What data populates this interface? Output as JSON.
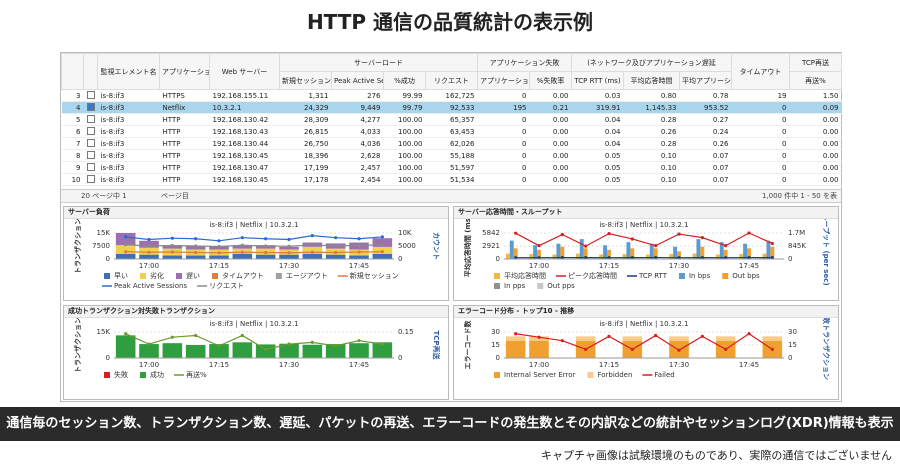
{
  "title": "HTTP 通信の品質統計の表示例",
  "table": {
    "headers": [
      "監視エレメント名",
      "アプリケーショ",
      "Web サーバー",
      "サーバーロード",
      "アプリケーション失敗",
      "(ネットワーク及びアプリケーション遅延",
      "タイムアウト",
      "TCP再送",
      "新規セッション",
      "Peak Active Se",
      "%成功",
      "リクエスト",
      "アプリケーショ",
      "%失敗率",
      "TCP RTT (ms)",
      "平均応答時間",
      "平均アプリーシ",
      "再送%"
    ],
    "selected_row": 1,
    "rows": [
      [
        "3",
        "is-8:if3",
        "HTTPS",
        "192.168.155.11",
        "1,311",
        "276",
        "99.99",
        "162,725",
        "0",
        "0.00",
        "0.03",
        "0.80",
        "0.78",
        "19",
        "1.50"
      ],
      [
        "4",
        "is-8:if3",
        "Netflix",
        "10.3.2.1",
        "24,329",
        "9,449",
        "99.79",
        "92,533",
        "195",
        "0.21",
        "319.91",
        "1,145.33",
        "953.52",
        "0",
        "0.09"
      ],
      [
        "5",
        "is-8:if3",
        "HTTP",
        "192.168.130.42",
        "28,309",
        "4,277",
        "100.00",
        "65,357",
        "0",
        "0.00",
        "0.04",
        "0.28",
        "0.27",
        "0",
        "0.00"
      ],
      [
        "6",
        "is-8:if3",
        "HTTP",
        "192.168.130.43",
        "26,815",
        "4,033",
        "100.00",
        "63,453",
        "0",
        "0.00",
        "0.04",
        "0.26",
        "0.24",
        "0",
        "0.00"
      ],
      [
        "7",
        "is-8:if3",
        "HTTP",
        "192.168.130.44",
        "26,750",
        "4,036",
        "100.00",
        "62,026",
        "0",
        "0.00",
        "0.04",
        "0.28",
        "0.26",
        "0",
        "0.00"
      ],
      [
        "8",
        "is-8:if3",
        "HTTP",
        "192.168.130.45",
        "18,396",
        "2,628",
        "100.00",
        "55,188",
        "0",
        "0.00",
        "0.05",
        "0.10",
        "0.07",
        "0",
        "0.00"
      ],
      [
        "9",
        "is-8:if3",
        "HTTP",
        "192.168.130.47",
        "17,199",
        "2,457",
        "100.00",
        "51,597",
        "0",
        "0.00",
        "0.05",
        "0.10",
        "0.07",
        "0",
        "0.00"
      ],
      [
        "10",
        "is-8:if3",
        "HTTP",
        "192.168.130.45",
        "17,178",
        "2,454",
        "100.00",
        "51,534",
        "0",
        "0.00",
        "0.05",
        "0.10",
        "0.07",
        "0",
        "0.00"
      ]
    ]
  },
  "pagination": {
    "pages": "20 ページ中 1",
    "page_label": "ページ目",
    "range": "1,000 件中 1 - 50 を表"
  },
  "panels": [
    {
      "title": "サーバー負荷",
      "subtitle": "is-8:if3 | Netflix | 10.3.2.1",
      "ylabel": "トランザクション",
      "y2label": "カウント",
      "stacked": true,
      "ylim": [
        0,
        15000
      ],
      "yticks": [
        0,
        7500,
        {
          "value": 15000,
          "label": "15K"
        }
      ],
      "y2lim": [
        0,
        10000
      ],
      "y2ticks": [
        0,
        5000,
        {
          "value": 10000,
          "label": "10K"
        }
      ],
      "xticks": [
        "17:00",
        "17:15",
        "17:30",
        "17:45"
      ],
      "series": [
        {
          "name": "早い",
          "kind": "bar",
          "color": "#3f6fb5",
          "values": [
            3000,
            2500,
            2000,
            2000,
            2000,
            3000,
            2500,
            2500,
            3000,
            2500,
            2000,
            3000
          ]
        },
        {
          "name": "劣化",
          "kind": "bar",
          "color": "#f0d050",
          "values": [
            5000,
            4000,
            4000,
            3500,
            3500,
            3000,
            3500,
            3000,
            4000,
            3500,
            3500,
            4000
          ]
        },
        {
          "name": "遅い",
          "kind": "bar",
          "color": "#9b6fb0",
          "values": [
            7000,
            4000,
            2000,
            2000,
            2000,
            1500,
            2000,
            1500,
            2500,
            3000,
            4000,
            5000
          ]
        },
        {
          "name": "タイムアウト",
          "kind": "bar",
          "color": "#e07b39",
          "values": [
            0,
            0,
            0,
            0,
            0,
            0,
            0,
            0,
            0,
            0,
            0,
            0
          ]
        },
        {
          "name": "エージアウト",
          "kind": "bar",
          "color": "#a0a0a0",
          "values": [
            0,
            0,
            0,
            0,
            0,
            0,
            0,
            0,
            0,
            0,
            0,
            0
          ]
        },
        {
          "name": "新規セッション",
          "kind": "line",
          "axis": "y2",
          "color": "#e07b39",
          "values": [
            2800,
            2600,
            2700,
            2500,
            2400,
            2600,
            2500,
            2400,
            2600,
            2500,
            2700,
            2800
          ]
        },
        {
          "name": "Peak Active Sessions",
          "kind": "line",
          "axis": "y2",
          "color": "#2a6ad0",
          "values": [
            8500,
            7500,
            8000,
            7800,
            7000,
            8200,
            7800,
            7500,
            9000,
            8200,
            7800,
            8500
          ]
        },
        {
          "name": "リクエスト",
          "kind": "line",
          "axis": "y2",
          "color": "#8a8a8a",
          "values": [
            5500,
            5000,
            5200,
            5000,
            4800,
            5300,
            5000,
            4900,
            5400,
            5100,
            5200,
            5500
          ]
        }
      ]
    },
    {
      "title": "サーバー応答時間・スループット",
      "subtitle": "is-8:if3 | Netflix | 10.3.2.1",
      "ylabel": "平均応答時間 (ms)",
      "y2label": "スループット (per sec)",
      "stacked": false,
      "ylim": [
        0,
        5842
      ],
      "yticks": [
        0,
        2921,
        5842
      ],
      "y2lim": [
        0,
        1700000
      ],
      "y2ticks": [
        0,
        {
          "value": 845000,
          "label": "845K"
        },
        {
          "value": 1700000,
          "label": "1.7M"
        }
      ],
      "xticks": [
        "17:00",
        "17:15",
        "17:30",
        "17:45"
      ],
      "series": [
        {
          "name": "平均応答時間",
          "kind": "bar",
          "color": "#f0b840",
          "values": [
            1200,
            1100,
            1000,
            1200,
            1000,
            1100,
            1000,
            1100,
            1200,
            1000,
            1100,
            1200
          ]
        },
        {
          "name": "ピーク応答時間",
          "kind": "line",
          "color": "#d81e1e",
          "values": [
            5800,
            3000,
            5500,
            2900,
            5700,
            4500,
            3000,
            5600,
            4800,
            3000,
            5842,
            3500
          ]
        },
        {
          "name": "TCP RTT",
          "kind": "line",
          "color": "#1f3a7a",
          "values": [
            300,
            300,
            320,
            310,
            300,
            310,
            320,
            300,
            310,
            300,
            320,
            310
          ]
        },
        {
          "name": "In bps",
          "kind": "bar",
          "axis": "y2",
          "color": "#5b9bd5",
          "values": [
            1200000,
            900000,
            1000000,
            1300000,
            900000,
            1100000,
            1000000,
            800000,
            1300000,
            1100000,
            1000000,
            1200000
          ]
        },
        {
          "name": "Out bps",
          "kind": "bar",
          "axis": "y2",
          "color": "#f0a030",
          "values": [
            700000,
            600000,
            800000,
            700000,
            600000,
            700000,
            700000,
            500000,
            800000,
            600000,
            700000,
            800000
          ]
        },
        {
          "name": "In pps",
          "kind": "bar",
          "axis": "y2",
          "color": "#909090",
          "values": [
            0,
            0,
            0,
            0,
            0,
            0,
            0,
            0,
            0,
            0,
            0,
            0
          ]
        },
        {
          "name": "Out pps",
          "kind": "bar",
          "axis": "y2",
          "color": "#c8c8c8",
          "values": [
            0,
            0,
            0,
            0,
            0,
            0,
            0,
            0,
            0,
            0,
            0,
            0
          ]
        }
      ]
    },
    {
      "title": "成功トランザクション対失敗トランザクション",
      "subtitle": "is-8:if3 | Netflix | 10.3.2.1",
      "ylabel": "トランザクション",
      "y2label": "TCP再送",
      "stacked": true,
      "ylim": [
        0,
        15000
      ],
      "yticks": [
        0,
        {
          "value": 15000,
          "label": "15K"
        }
      ],
      "y2lim": [
        0,
        0.15
      ],
      "y2ticks": [
        0,
        0.15
      ],
      "xticks": [
        "17:00",
        "17:15",
        "17:30",
        "17:45"
      ],
      "series": [
        {
          "name": "失敗",
          "kind": "bar",
          "color": "#d81e1e",
          "values": [
            60,
            40,
            50,
            40,
            40,
            50,
            40,
            40,
            50,
            40,
            40,
            50
          ]
        },
        {
          "name": "成功",
          "kind": "bar",
          "color": "#2e9e3e",
          "values": [
            13000,
            8000,
            8500,
            7500,
            8000,
            9000,
            7800,
            8200,
            7600,
            8000,
            8500,
            9000
          ]
        },
        {
          "name": "再送%",
          "kind": "line",
          "axis": "y2",
          "color": "#6b9a2e",
          "values": [
            0.14,
            0.08,
            0.12,
            0.13,
            0.07,
            0.13,
            0.05,
            0.08,
            0.09,
            0.07,
            0.1,
            0.08
          ]
        }
      ]
    },
    {
      "title": "エラーコード分布 - トップ10 - 推移",
      "subtitle": "is-8:if3 | Netflix | 10.3.2.1",
      "ylabel": "エラーコード数",
      "y2label": "失敗トランザクション",
      "stacked": true,
      "ylim": [
        0,
        30
      ],
      "yticks": [
        0,
        15,
        30
      ],
      "y2lim": [
        0,
        30
      ],
      "y2ticks": [
        0,
        15,
        30
      ],
      "xticks": [
        "17:00",
        "17:15",
        "17:30",
        "17:45"
      ],
      "series": [
        {
          "name": "Internal Server Error",
          "kind": "bar",
          "color": "#f0a030",
          "values": [
            20,
            20,
            0,
            20,
            0,
            20,
            0,
            20,
            0,
            20,
            0,
            20
          ]
        },
        {
          "name": "Forbidden",
          "kind": "bar",
          "color": "#f8cc88",
          "values": [
            5,
            5,
            0,
            5,
            0,
            5,
            0,
            5,
            0,
            5,
            0,
            5
          ]
        },
        {
          "name": "Failed",
          "kind": "line",
          "axis": "y2",
          "color": "#d81e1e",
          "values": [
            28,
            24,
            20,
            10,
            25,
            10,
            26,
            9,
            25,
            10,
            28,
            10
          ]
        }
      ]
    }
  ],
  "caption": "通信毎のセッション数、トランザクション数、遅延、パケットの再送、エラーコードの発生数とその内訳などの統計やセッションログ(XDR)情報も表示可能",
  "note": "キャプチャ画像は試験環境のものであり、実際の通信ではございません"
}
